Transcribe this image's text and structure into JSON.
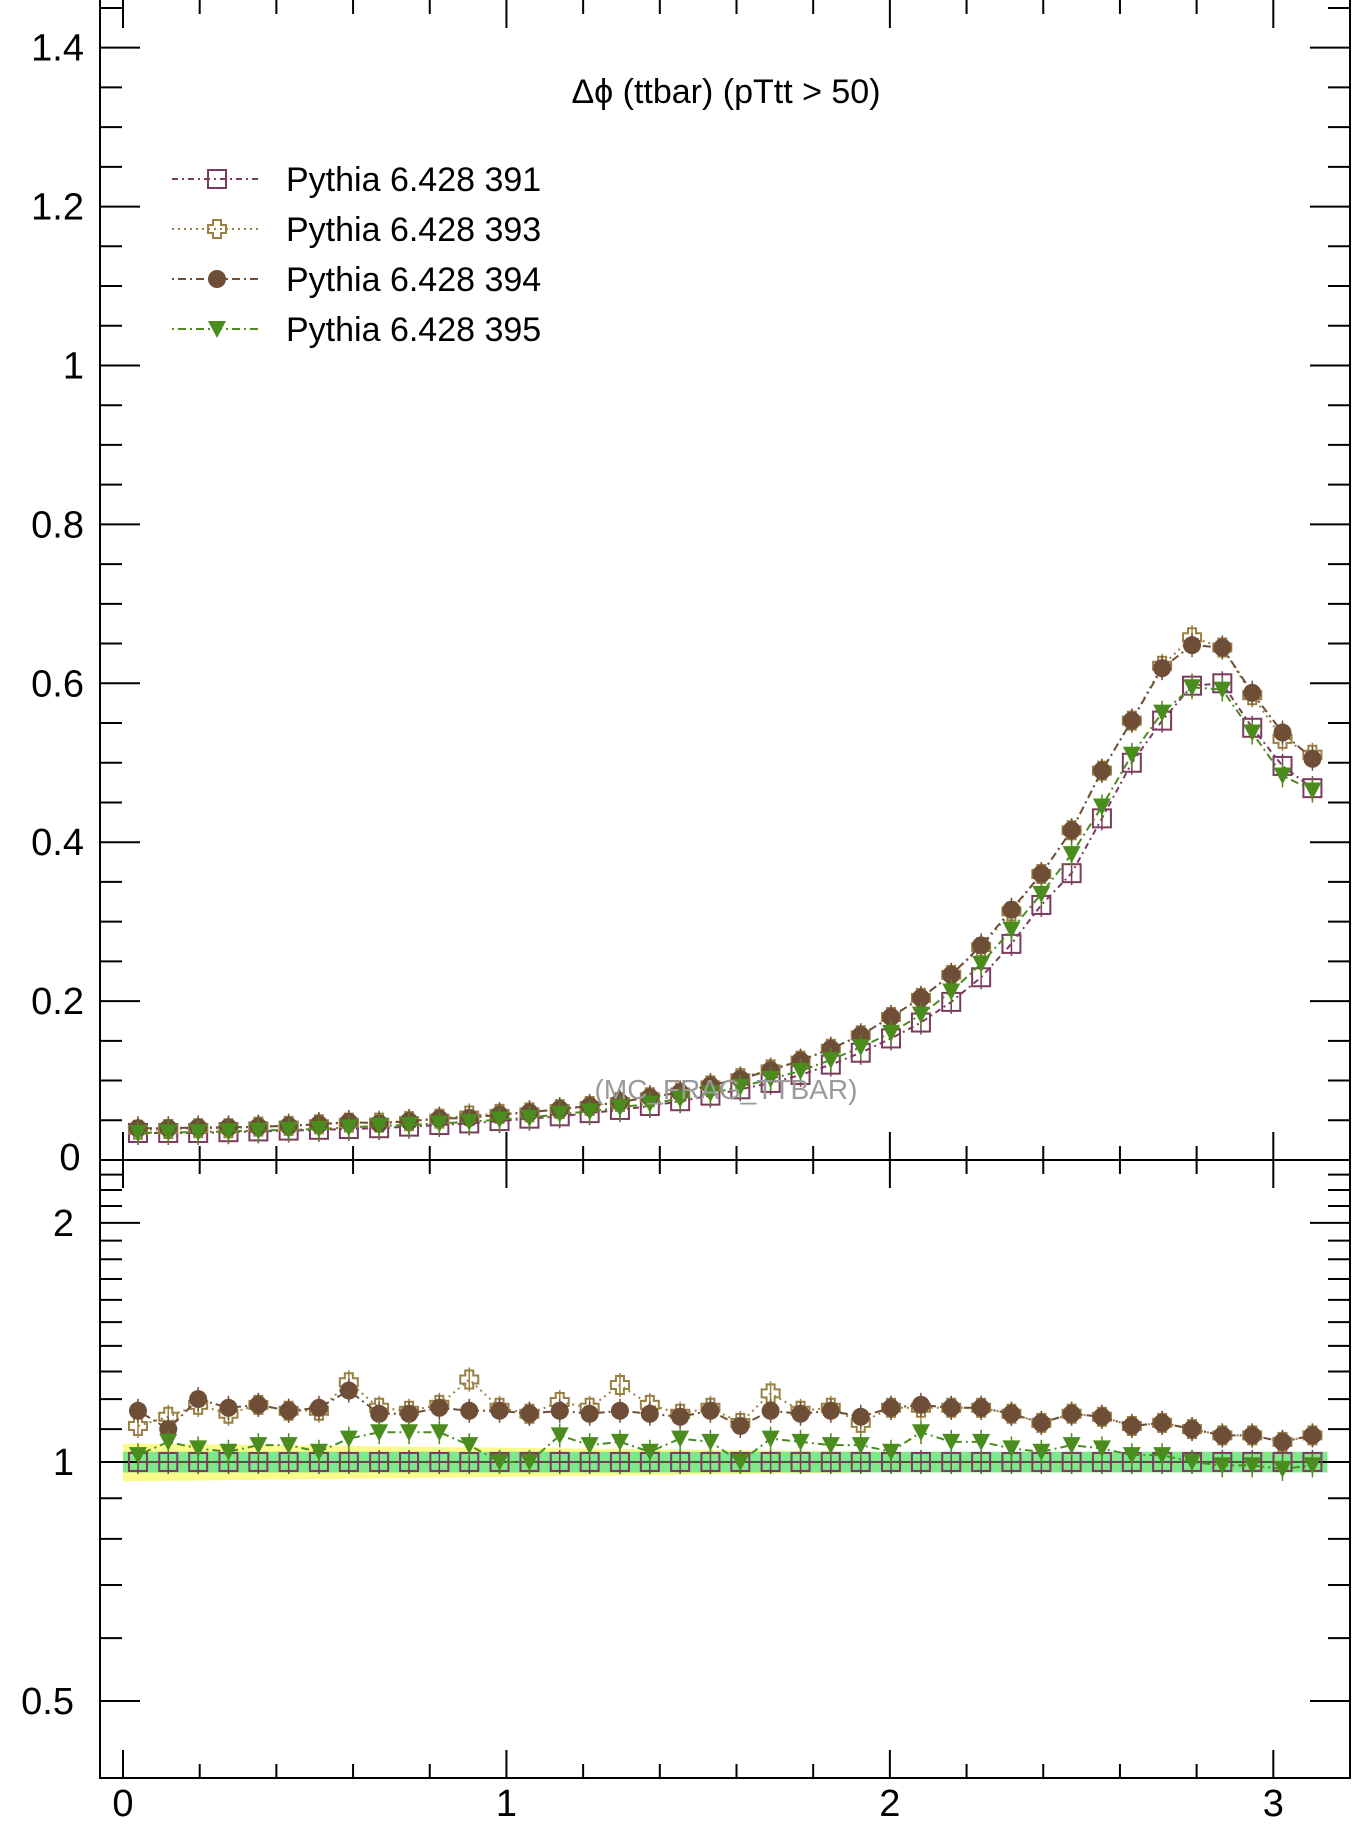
{
  "chart_data": {
    "type": "scatter",
    "title": "Δϕ (ttbar) (pTtt > 50)",
    "watermark": "(MC_FRAG_TTBAR)",
    "xlabel": "",
    "ylabel": "",
    "legend_placement": "top-left",
    "x": [
      0.039,
      0.118,
      0.196,
      0.275,
      0.353,
      0.432,
      0.511,
      0.589,
      0.668,
      0.746,
      0.825,
      0.903,
      0.982,
      1.06,
      1.139,
      1.217,
      1.296,
      1.374,
      1.453,
      1.532,
      1.61,
      1.689,
      1.767,
      1.846,
      1.924,
      2.003,
      2.081,
      2.16,
      2.238,
      2.317,
      2.395,
      2.474,
      2.553,
      2.631,
      2.71,
      2.788,
      2.867,
      2.945,
      3.024,
      3.102
    ],
    "main": {
      "xlim": [
        -0.06,
        3.2
      ],
      "ylim": [
        0,
        1.46
      ],
      "x_ticks": [
        0,
        1,
        2,
        3
      ],
      "x_tick_labels": [
        "0",
        "1",
        "2",
        "3"
      ],
      "y_ticks": [
        0.2,
        0.4,
        0.6,
        0.8,
        1.0,
        1.2,
        1.4
      ],
      "y_tick_labels": [
        "0.2",
        "0.4",
        "0.6",
        "0.8",
        "1",
        "1.2",
        "1.4"
      ],
      "y_clipped_label": "0"
    },
    "ratio": {
      "ylim": [
        0.4,
        2.4
      ],
      "log_scale": true,
      "y_ticks": [
        0.5,
        1,
        2
      ],
      "y_tick_labels": [
        "0.5",
        "1",
        "2"
      ],
      "reference_line": 1.0,
      "band_inner_halfwidth": 0.03,
      "band_outer_halfwidth_start": 0.055,
      "band_outer_halfwidth_end": 0.015
    },
    "series": [
      {
        "name": "Pythia 6.428 391",
        "color": "#7b3b5e",
        "marker": "open-square",
        "linestyle": "6,4,2,4",
        "values": [
          0.034,
          0.034,
          0.034,
          0.035,
          0.036,
          0.037,
          0.038,
          0.039,
          0.04,
          0.042,
          0.044,
          0.046,
          0.049,
          0.052,
          0.055,
          0.059,
          0.063,
          0.068,
          0.074,
          0.081,
          0.089,
          0.097,
          0.107,
          0.12,
          0.135,
          0.153,
          0.173,
          0.199,
          0.23,
          0.272,
          0.321,
          0.361,
          0.43,
          0.5,
          0.553,
          0.597,
          0.6,
          0.544,
          0.496,
          0.468
        ],
        "ratio": [
          1,
          1,
          1,
          1,
          1,
          1,
          1,
          1,
          1,
          1,
          1,
          1,
          1,
          1,
          1,
          1,
          1,
          1,
          1,
          1,
          1,
          1,
          1,
          1,
          1,
          1,
          1,
          1,
          1,
          1,
          1,
          1,
          1,
          1,
          1,
          1,
          1,
          1,
          1,
          1
        ]
      },
      {
        "name": "Pythia 6.428 393",
        "color": "#9a8044",
        "marker": "open-cross",
        "linestyle": "2,4",
        "values": [
          0.038,
          0.039,
          0.04,
          0.04,
          0.042,
          0.043,
          0.045,
          0.047,
          0.047,
          0.049,
          0.052,
          0.056,
          0.058,
          0.06,
          0.064,
          0.068,
          0.073,
          0.079,
          0.085,
          0.094,
          0.103,
          0.114,
          0.125,
          0.14,
          0.157,
          0.18,
          0.204,
          0.233,
          0.268,
          0.313,
          0.36,
          0.415,
          0.49,
          0.553,
          0.622,
          0.658,
          0.645,
          0.585,
          0.53,
          0.51
        ],
        "ratio": [
          1.11,
          1.14,
          1.18,
          1.15,
          1.18,
          1.16,
          1.16,
          1.26,
          1.17,
          1.16,
          1.18,
          1.27,
          1.17,
          1.15,
          1.19,
          1.17,
          1.25,
          1.18,
          1.15,
          1.17,
          1.12,
          1.22,
          1.16,
          1.17,
          1.12,
          1.17,
          1.17,
          1.17,
          1.17,
          1.15,
          1.12,
          1.15,
          1.14,
          1.11,
          1.12,
          1.1,
          1.08,
          1.08,
          1.06,
          1.08
        ]
      },
      {
        "name": "Pythia 6.428 394",
        "color": "#6e4e37",
        "marker": "filled-circle",
        "linestyle": "2,4,8,4",
        "values": [
          0.04,
          0.04,
          0.041,
          0.041,
          0.042,
          0.043,
          0.045,
          0.048,
          0.046,
          0.049,
          0.052,
          0.053,
          0.057,
          0.06,
          0.064,
          0.068,
          0.073,
          0.079,
          0.085,
          0.094,
          0.102,
          0.113,
          0.125,
          0.14,
          0.157,
          0.18,
          0.204,
          0.233,
          0.27,
          0.315,
          0.36,
          0.415,
          0.49,
          0.553,
          0.619,
          0.648,
          0.645,
          0.588,
          0.538,
          0.505
        ],
        "ratio": [
          1.16,
          1.1,
          1.2,
          1.17,
          1.18,
          1.16,
          1.17,
          1.23,
          1.15,
          1.15,
          1.17,
          1.16,
          1.16,
          1.15,
          1.16,
          1.15,
          1.16,
          1.15,
          1.14,
          1.16,
          1.11,
          1.16,
          1.15,
          1.16,
          1.14,
          1.17,
          1.18,
          1.17,
          1.17,
          1.15,
          1.12,
          1.15,
          1.14,
          1.11,
          1.12,
          1.1,
          1.08,
          1.08,
          1.06,
          1.08
        ]
      },
      {
        "name": "Pythia 6.428 395",
        "color": "#4b8c1f",
        "marker": "filled-triangle-down",
        "linestyle": "2,4,8,4",
        "values": [
          0.034,
          0.035,
          0.035,
          0.036,
          0.037,
          0.038,
          0.039,
          0.041,
          0.043,
          0.044,
          0.046,
          0.048,
          0.051,
          0.053,
          0.058,
          0.061,
          0.066,
          0.071,
          0.077,
          0.084,
          0.092,
          0.102,
          0.112,
          0.126,
          0.142,
          0.16,
          0.183,
          0.212,
          0.247,
          0.29,
          0.335,
          0.385,
          0.445,
          0.51,
          0.563,
          0.595,
          0.592,
          0.538,
          0.484,
          0.465
        ],
        "ratio": [
          1.02,
          1.06,
          1.04,
          1.03,
          1.05,
          1.05,
          1.03,
          1.07,
          1.09,
          1.09,
          1.09,
          1.05,
          1.0,
          1.0,
          1.08,
          1.05,
          1.06,
          1.03,
          1.07,
          1.06,
          1.0,
          1.07,
          1.06,
          1.05,
          1.05,
          1.03,
          1.09,
          1.06,
          1.06,
          1.04,
          1.03,
          1.05,
          1.04,
          1.02,
          1.02,
          1.0,
          0.99,
          0.99,
          0.98,
          0.99
        ]
      }
    ]
  }
}
